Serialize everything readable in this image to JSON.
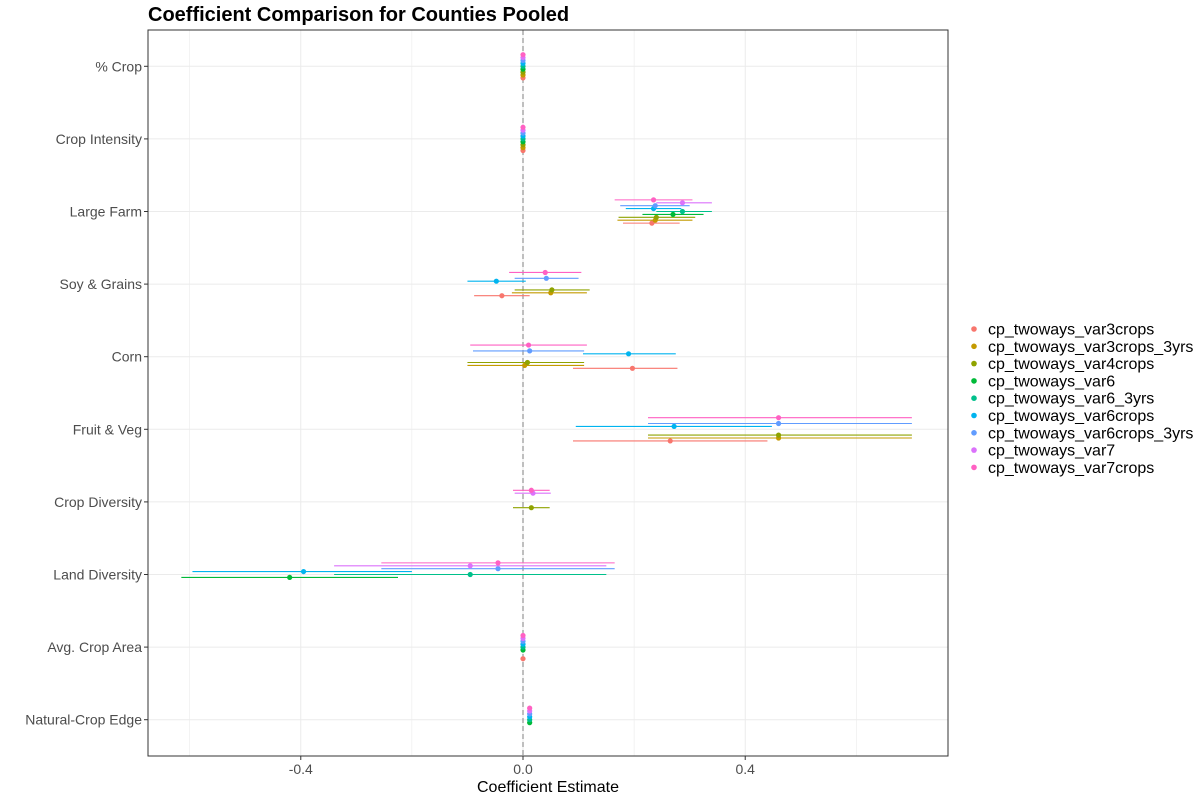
{
  "chart_data": {
    "type": "scatter",
    "title": "Coefficient Comparison for Counties Pooled",
    "xlabel": "Coefficient Estimate",
    "ylabel": "",
    "xlim": [
      -0.675,
      0.765
    ],
    "x_ticks": [
      -0.4,
      0.0,
      0.4
    ],
    "x_tick_labels": [
      "-0.4",
      "0.0",
      "0.4"
    ],
    "reference_line_x": 0.0,
    "grid": true,
    "legend_position": "right",
    "categories": [
      "% Crop",
      "Crop Intensity",
      "Large Farm",
      "Soy & Grains",
      "Corn",
      "Fruit & Veg",
      "Crop Diversity",
      "Land Diversity",
      "Avg. Crop Area",
      "Natural-Crop Edge"
    ],
    "series": [
      {
        "name": "cp_twoways_var3crops",
        "color": "#F8766D",
        "points": [
          {
            "category": "% Crop",
            "estimate": 0.0,
            "low": 0.0,
            "high": 0.0
          },
          {
            "category": "Crop Intensity",
            "estimate": 0.0,
            "low": 0.0,
            "high": 0.0
          },
          {
            "category": "Large Farm",
            "estimate": 0.232,
            "low": 0.18,
            "high": 0.282
          },
          {
            "category": "Soy & Grains",
            "estimate": -0.038,
            "low": -0.088,
            "high": 0.012
          },
          {
            "category": "Corn",
            "estimate": 0.197,
            "low": 0.09,
            "high": 0.278
          },
          {
            "category": "Fruit & Veg",
            "estimate": 0.265,
            "low": 0.09,
            "high": 0.44
          },
          {
            "category": "Avg. Crop Area",
            "estimate": 0.0,
            "low": 0.0,
            "high": 0.0
          }
        ]
      },
      {
        "name": "cp_twoways_var3crops_3yrs",
        "color": "#C49A00",
        "points": [
          {
            "category": "% Crop",
            "estimate": 0.0,
            "low": 0.0,
            "high": 0.0
          },
          {
            "category": "Crop Intensity",
            "estimate": 0.0,
            "low": 0.0,
            "high": 0.0
          },
          {
            "category": "Large Farm",
            "estimate": 0.238,
            "low": 0.17,
            "high": 0.305
          },
          {
            "category": "Soy & Grains",
            "estimate": 0.05,
            "low": -0.02,
            "high": 0.115
          },
          {
            "category": "Corn",
            "estimate": 0.003,
            "low": -0.1,
            "high": 0.11
          },
          {
            "category": "Fruit & Veg",
            "estimate": 0.46,
            "low": 0.225,
            "high": 0.7
          }
        ]
      },
      {
        "name": "cp_twoways_var4crops",
        "color": "#8FA300",
        "points": [
          {
            "category": "% Crop",
            "estimate": 0.0,
            "low": 0.0,
            "high": 0.0
          },
          {
            "category": "Crop Intensity",
            "estimate": 0.0,
            "low": 0.0,
            "high": 0.0
          },
          {
            "category": "Large Farm",
            "estimate": 0.24,
            "low": 0.172,
            "high": 0.31
          },
          {
            "category": "Soy & Grains",
            "estimate": 0.052,
            "low": -0.015,
            "high": 0.12
          },
          {
            "category": "Corn",
            "estimate": 0.008,
            "low": -0.1,
            "high": 0.11
          },
          {
            "category": "Fruit & Veg",
            "estimate": 0.46,
            "low": 0.225,
            "high": 0.7
          },
          {
            "category": "Crop Diversity",
            "estimate": 0.015,
            "low": -0.018,
            "high": 0.048
          }
        ]
      },
      {
        "name": "cp_twoways_var6",
        "color": "#00BA38",
        "points": [
          {
            "category": "% Crop",
            "estimate": 0.0,
            "low": 0.0,
            "high": 0.0
          },
          {
            "category": "Crop Intensity",
            "estimate": 0.0,
            "low": 0.0,
            "high": 0.0
          },
          {
            "category": "Large Farm",
            "estimate": 0.27,
            "low": 0.215,
            "high": 0.325
          },
          {
            "category": "Land Diversity",
            "estimate": -0.42,
            "low": -0.615,
            "high": -0.225
          },
          {
            "category": "Avg. Crop Area",
            "estimate": 0.0,
            "low": 0.0,
            "high": 0.0
          },
          {
            "category": "Natural-Crop Edge",
            "estimate": 0.012,
            "low": 0.012,
            "high": 0.012
          }
        ]
      },
      {
        "name": "cp_twoways_var6_3yrs",
        "color": "#00C08B",
        "points": [
          {
            "category": "% Crop",
            "estimate": 0.0,
            "low": 0.0,
            "high": 0.0
          },
          {
            "category": "Crop Intensity",
            "estimate": 0.0,
            "low": 0.0,
            "high": 0.0
          },
          {
            "category": "Large Farm",
            "estimate": 0.287,
            "low": 0.24,
            "high": 0.34
          },
          {
            "category": "Land Diversity",
            "estimate": -0.095,
            "low": -0.34,
            "high": 0.15
          },
          {
            "category": "Avg. Crop Area",
            "estimate": 0.0,
            "low": 0.0,
            "high": 0.0
          },
          {
            "category": "Natural-Crop Edge",
            "estimate": 0.012,
            "low": 0.012,
            "high": 0.012
          }
        ]
      },
      {
        "name": "cp_twoways_var6crops",
        "color": "#00B4EF",
        "points": [
          {
            "category": "% Crop",
            "estimate": 0.0,
            "low": 0.0,
            "high": 0.0
          },
          {
            "category": "Crop Intensity",
            "estimate": 0.0,
            "low": 0.0,
            "high": 0.0
          },
          {
            "category": "Large Farm",
            "estimate": 0.235,
            "low": 0.185,
            "high": 0.285
          },
          {
            "category": "Soy & Grains",
            "estimate": -0.048,
            "low": -0.1,
            "high": 0.005
          },
          {
            "category": "Corn",
            "estimate": 0.19,
            "low": 0.108,
            "high": 0.275
          },
          {
            "category": "Fruit & Veg",
            "estimate": 0.272,
            "low": 0.095,
            "high": 0.448
          },
          {
            "category": "Land Diversity",
            "estimate": -0.395,
            "low": -0.595,
            "high": -0.2
          },
          {
            "category": "Avg. Crop Area",
            "estimate": 0.0,
            "low": 0.0,
            "high": 0.0
          },
          {
            "category": "Natural-Crop Edge",
            "estimate": 0.012,
            "low": 0.012,
            "high": 0.012
          }
        ]
      },
      {
        "name": "cp_twoways_var6crops_3yrs",
        "color": "#619CFF",
        "points": [
          {
            "category": "% Crop",
            "estimate": 0.0,
            "low": 0.0,
            "high": 0.0
          },
          {
            "category": "Crop Intensity",
            "estimate": 0.0,
            "low": 0.0,
            "high": 0.0
          },
          {
            "category": "Large Farm",
            "estimate": 0.238,
            "low": 0.175,
            "high": 0.3
          },
          {
            "category": "Soy & Grains",
            "estimate": 0.042,
            "low": -0.015,
            "high": 0.1
          },
          {
            "category": "Corn",
            "estimate": 0.012,
            "low": -0.09,
            "high": 0.11
          },
          {
            "category": "Fruit & Veg",
            "estimate": 0.46,
            "low": 0.225,
            "high": 0.7
          },
          {
            "category": "Land Diversity",
            "estimate": -0.045,
            "low": -0.255,
            "high": 0.165
          },
          {
            "category": "Avg. Crop Area",
            "estimate": 0.0,
            "low": 0.0,
            "high": 0.0
          },
          {
            "category": "Natural-Crop Edge",
            "estimate": 0.012,
            "low": 0.012,
            "high": 0.012
          }
        ]
      },
      {
        "name": "cp_twoways_var7",
        "color": "#DB72FB",
        "points": [
          {
            "category": "% Crop",
            "estimate": 0.0,
            "low": 0.0,
            "high": 0.0
          },
          {
            "category": "Crop Intensity",
            "estimate": 0.0,
            "low": 0.0,
            "high": 0.0
          },
          {
            "category": "Large Farm",
            "estimate": 0.287,
            "low": 0.24,
            "high": 0.34
          },
          {
            "category": "Crop Diversity",
            "estimate": 0.018,
            "low": -0.015,
            "high": 0.05
          },
          {
            "category": "Land Diversity",
            "estimate": -0.095,
            "low": -0.34,
            "high": 0.15
          },
          {
            "category": "Avg. Crop Area",
            "estimate": 0.0,
            "low": 0.0,
            "high": 0.0
          },
          {
            "category": "Natural-Crop Edge",
            "estimate": 0.012,
            "low": 0.012,
            "high": 0.012
          }
        ]
      },
      {
        "name": "cp_twoways_var7crops",
        "color": "#FF61C3",
        "points": [
          {
            "category": "% Crop",
            "estimate": 0.0,
            "low": 0.0,
            "high": 0.0
          },
          {
            "category": "Crop Intensity",
            "estimate": 0.0,
            "low": 0.0,
            "high": 0.0
          },
          {
            "category": "Large Farm",
            "estimate": 0.235,
            "low": 0.165,
            "high": 0.305
          },
          {
            "category": "Soy & Grains",
            "estimate": 0.04,
            "low": -0.025,
            "high": 0.105
          },
          {
            "category": "Corn",
            "estimate": 0.01,
            "low": -0.095,
            "high": 0.115
          },
          {
            "category": "Fruit & Veg",
            "estimate": 0.46,
            "low": 0.225,
            "high": 0.7
          },
          {
            "category": "Crop Diversity",
            "estimate": 0.015,
            "low": -0.018,
            "high": 0.048
          },
          {
            "category": "Land Diversity",
            "estimate": -0.045,
            "low": -0.255,
            "high": 0.165
          },
          {
            "category": "Avg. Crop Area",
            "estimate": 0.0,
            "low": 0.0,
            "high": 0.0
          },
          {
            "category": "Natural-Crop Edge",
            "estimate": 0.012,
            "low": 0.012,
            "high": 0.012
          }
        ]
      }
    ]
  }
}
